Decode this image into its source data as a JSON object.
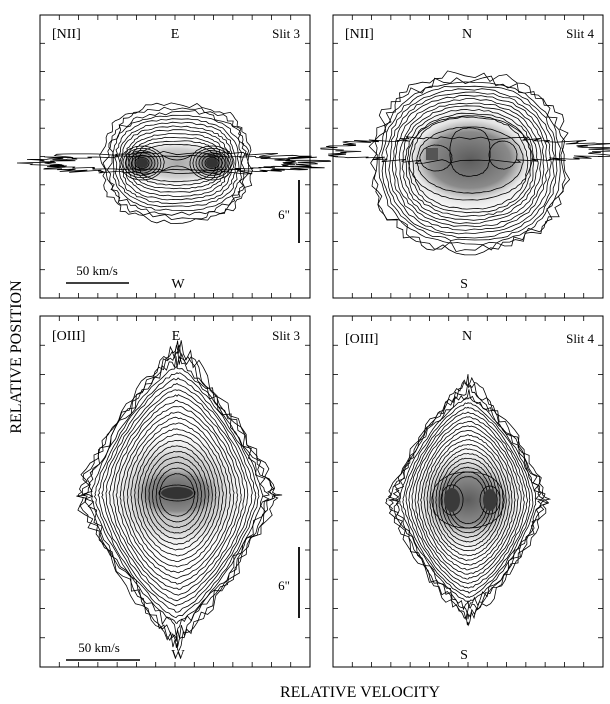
{
  "chart_data": {
    "type": "contour",
    "ylabel": "RELATIVE POSITION",
    "xlabel": "RELATIVE VELOCITY",
    "panels": [
      {
        "id": "nii-slit3",
        "line": "[NII]",
        "slit": "Slit 3",
        "top_orientation": "E",
        "bottom_orientation": "W",
        "velocity_scalebar": "50 km/s",
        "shape": "bipolar-horizontal",
        "emission_peaks": 2,
        "peak_positions_rel_velocity": [
          -0.45,
          0.45
        ]
      },
      {
        "id": "nii-slit4",
        "line": "[NII]",
        "slit": "Slit 4",
        "top_orientation": "N",
        "bottom_orientation": "S",
        "spatial_scalebar": "6\"",
        "shape": "ring-ellipse",
        "emission_peaks": 3
      },
      {
        "id": "oiii-slit3",
        "line": "[OIII]",
        "slit": "Slit 3",
        "top_orientation": "E",
        "bottom_orientation": "W",
        "velocity_scalebar": "50 km/s",
        "spatial_scalebar": "6\"",
        "shape": "diamond",
        "emission_peaks": 1
      },
      {
        "id": "oiii-slit4",
        "line": "[OIII]",
        "slit": "Slit 4",
        "top_orientation": "N",
        "bottom_orientation": "S",
        "shape": "diamond",
        "emission_peaks": 2
      }
    ],
    "colors": {
      "ink": "#000000",
      "background": "#ffffff"
    }
  }
}
